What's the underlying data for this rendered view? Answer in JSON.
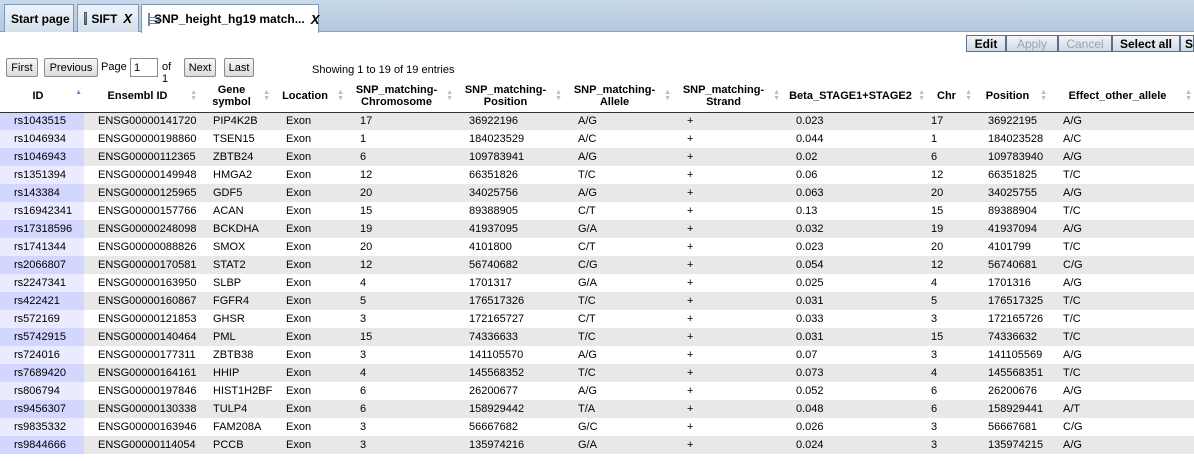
{
  "tabs": [
    {
      "label": "Start page",
      "icon": "none",
      "closable": false
    },
    {
      "label": "SIFT",
      "icon": "sift-icon",
      "closable": true
    },
    {
      "label": "SNP_height_hg19 match...",
      "icon": "table-icon",
      "closable": true,
      "active": true
    }
  ],
  "toolbar": {
    "edit_label": "Edit",
    "apply_label": "Apply",
    "cancel_label": "Cancel",
    "select_all_label": "Select all",
    "overflow_label": "S"
  },
  "pager": {
    "first_label": "First",
    "previous_label": "Previous",
    "page_label": "Page",
    "page_value": "1",
    "of_label": "of 1",
    "next_label": "Next",
    "last_label": "Last",
    "info": "Showing 1 to 19 of 19 entries"
  },
  "table": {
    "headers": [
      "ID",
      "Ensembl ID",
      "Gene symbol",
      "Location",
      "SNP_matching-Chromosome",
      "SNP_matching-Position",
      "SNP_matching-Allele",
      "SNP_matching-Strand",
      "Beta_STAGE1+STAGE2",
      "Chr",
      "Position",
      "Effect_other_allele"
    ],
    "rows": [
      [
        "rs1043515",
        "ENSG00000141720",
        "PIP4K2B",
        "Exon",
        "17",
        "36922196",
        "A/G",
        "+",
        "0.023",
        "17",
        "36922195",
        "A/G"
      ],
      [
        "rs1046934",
        "ENSG00000198860",
        "TSEN15",
        "Exon",
        "1",
        "184023529",
        "A/C",
        "+",
        "0.044",
        "1",
        "184023528",
        "A/C"
      ],
      [
        "rs1046943",
        "ENSG00000112365",
        "ZBTB24",
        "Exon",
        "6",
        "109783941",
        "A/G",
        "+",
        "0.02",
        "6",
        "109783940",
        "A/G"
      ],
      [
        "rs1351394",
        "ENSG00000149948",
        "HMGA2",
        "Exon",
        "12",
        "66351826",
        "T/C",
        "+",
        "0.06",
        "12",
        "66351825",
        "T/C"
      ],
      [
        "rs143384",
        "ENSG00000125965",
        "GDF5",
        "Exon",
        "20",
        "34025756",
        "A/G",
        "+",
        "0.063",
        "20",
        "34025755",
        "A/G"
      ],
      [
        "rs16942341",
        "ENSG00000157766",
        "ACAN",
        "Exon",
        "15",
        "89388905",
        "C/T",
        "+",
        "0.13",
        "15",
        "89388904",
        "T/C"
      ],
      [
        "rs17318596",
        "ENSG00000248098",
        "BCKDHA",
        "Exon",
        "19",
        "41937095",
        "G/A",
        "+",
        "0.032",
        "19",
        "41937094",
        "A/G"
      ],
      [
        "rs1741344",
        "ENSG00000088826",
        "SMOX",
        "Exon",
        "20",
        "4101800",
        "C/T",
        "+",
        "0.023",
        "20",
        "4101799",
        "T/C"
      ],
      [
        "rs2066807",
        "ENSG00000170581",
        "STAT2",
        "Exon",
        "12",
        "56740682",
        "C/G",
        "+",
        "0.054",
        "12",
        "56740681",
        "C/G"
      ],
      [
        "rs2247341",
        "ENSG00000163950",
        "SLBP",
        "Exon",
        "4",
        "1701317",
        "G/A",
        "+",
        "0.025",
        "4",
        "1701316",
        "A/G"
      ],
      [
        "rs422421",
        "ENSG00000160867",
        "FGFR4",
        "Exon",
        "5",
        "176517326",
        "T/C",
        "+",
        "0.031",
        "5",
        "176517325",
        "T/C"
      ],
      [
        "rs572169",
        "ENSG00000121853",
        "GHSR",
        "Exon",
        "3",
        "172165727",
        "C/T",
        "+",
        "0.033",
        "3",
        "172165726",
        "T/C"
      ],
      [
        "rs5742915",
        "ENSG00000140464",
        "PML",
        "Exon",
        "15",
        "74336633",
        "T/C",
        "+",
        "0.031",
        "15",
        "74336632",
        "T/C"
      ],
      [
        "rs724016",
        "ENSG00000177311",
        "ZBTB38",
        "Exon",
        "3",
        "141105570",
        "A/G",
        "+",
        "0.07",
        "3",
        "141105569",
        "A/G"
      ],
      [
        "rs7689420",
        "ENSG00000164161",
        "HHIP",
        "Exon",
        "4",
        "145568352",
        "T/C",
        "+",
        "0.073",
        "4",
        "145568351",
        "T/C"
      ],
      [
        "rs806794",
        "ENSG00000197846",
        "HIST1H2BF",
        "Exon",
        "6",
        "26200677",
        "A/G",
        "+",
        "0.052",
        "6",
        "26200676",
        "A/G"
      ],
      [
        "rs9456307",
        "ENSG00000130338",
        "TULP4",
        "Exon",
        "6",
        "158929442",
        "T/A",
        "+",
        "0.048",
        "6",
        "158929441",
        "A/T"
      ],
      [
        "rs9835332",
        "ENSG00000163946",
        "FAM208A",
        "Exon",
        "3",
        "56667682",
        "G/C",
        "+",
        "0.026",
        "3",
        "56667681",
        "C/G"
      ],
      [
        "rs9844666",
        "ENSG00000114054",
        "PCCB",
        "Exon",
        "3",
        "135974216",
        "G/A",
        "+",
        "0.024",
        "3",
        "135974215",
        "A/G"
      ]
    ]
  }
}
